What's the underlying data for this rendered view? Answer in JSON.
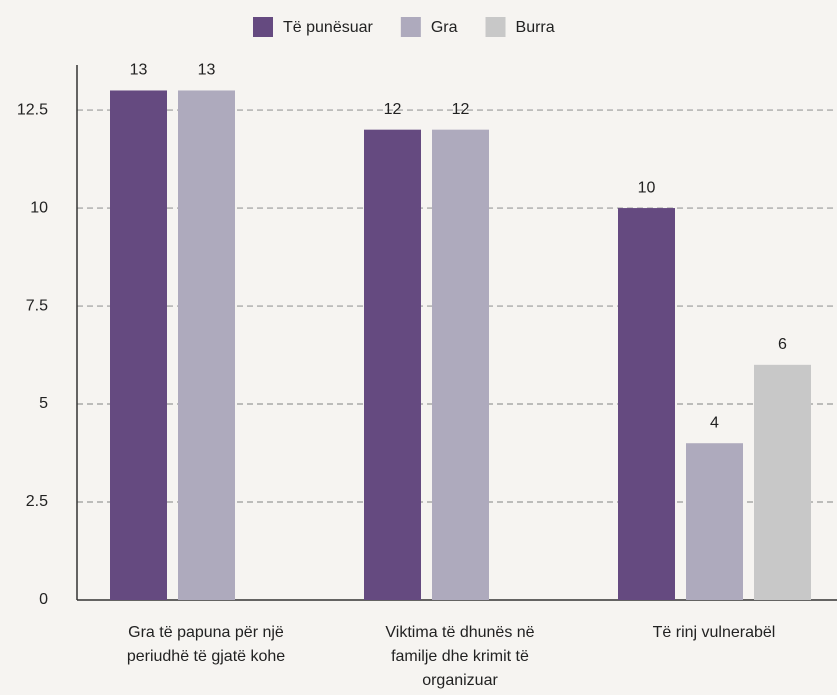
{
  "chart_data": {
    "type": "bar",
    "categories": [
      "Gra të papuna për një periudhë të gjatë kohe",
      "Viktima të dhunës në familje dhe krimit të organizuar",
      "Të rinj vulnerabël"
    ],
    "series": [
      {
        "name": "Të punësuar",
        "color": "#654a80",
        "values": [
          13,
          12,
          10
        ]
      },
      {
        "name": "Gra",
        "color": "#aeaabd",
        "values": [
          13,
          12,
          4
        ]
      },
      {
        "name": "Burra",
        "color": "#c8c8c8",
        "values": [
          null,
          null,
          6
        ]
      }
    ],
    "ylim": [
      0,
      13.65
    ],
    "yticks": [
      0,
      2.5,
      5,
      7.5,
      10,
      12.5
    ],
    "grid": true,
    "legend": "top"
  }
}
